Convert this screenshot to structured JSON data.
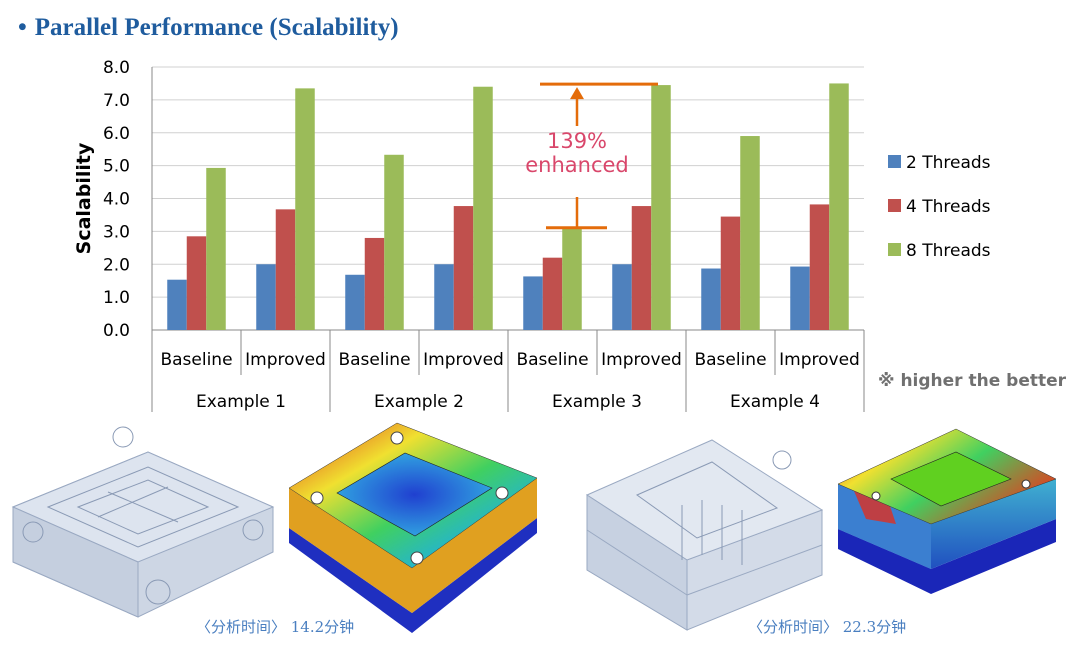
{
  "header": {
    "bullet": "•",
    "title": "Parallel Performance (Scalability)"
  },
  "colors": {
    "s2": "#4f81bd",
    "s4": "#c0504d",
    "s8": "#9bbb59",
    "annot": "#d9476b",
    "annotLine": "#e46c0a",
    "title": "#1f5c9e"
  },
  "chart_data": {
    "type": "bar",
    "ylabel": "Scalability",
    "ylim": [
      0,
      8
    ],
    "yticks": [
      "0.0",
      "1.0",
      "2.0",
      "3.0",
      "4.0",
      "5.0",
      "6.0",
      "7.0",
      "8.0"
    ],
    "categories": [
      "Baseline",
      "Improved",
      "Baseline",
      "Improved",
      "Baseline",
      "Improved",
      "Baseline",
      "Improved"
    ],
    "groups": [
      "Example 1",
      "Example 2",
      "Example 3",
      "Example 4"
    ],
    "series": [
      {
        "name": "2 Threads",
        "values": [
          1.53,
          2.0,
          1.68,
          2.0,
          1.63,
          2.0,
          1.87,
          1.93
        ]
      },
      {
        "name": "4 Threads",
        "values": [
          2.85,
          3.67,
          2.8,
          3.77,
          2.2,
          3.77,
          3.45,
          3.82
        ]
      },
      {
        "name": "8 Threads",
        "values": [
          4.93,
          7.35,
          5.33,
          7.4,
          3.08,
          7.45,
          5.9,
          7.5
        ]
      }
    ],
    "annotation": {
      "line1": "139%",
      "line2": "enhanced",
      "from": 3.08,
      "to": 7.45
    },
    "note": "※ higher the better",
    "legend": "right"
  },
  "captions": [
    "〈分析时间〉 14.2分钟",
    "〈分析时间〉 22.3分钟"
  ]
}
